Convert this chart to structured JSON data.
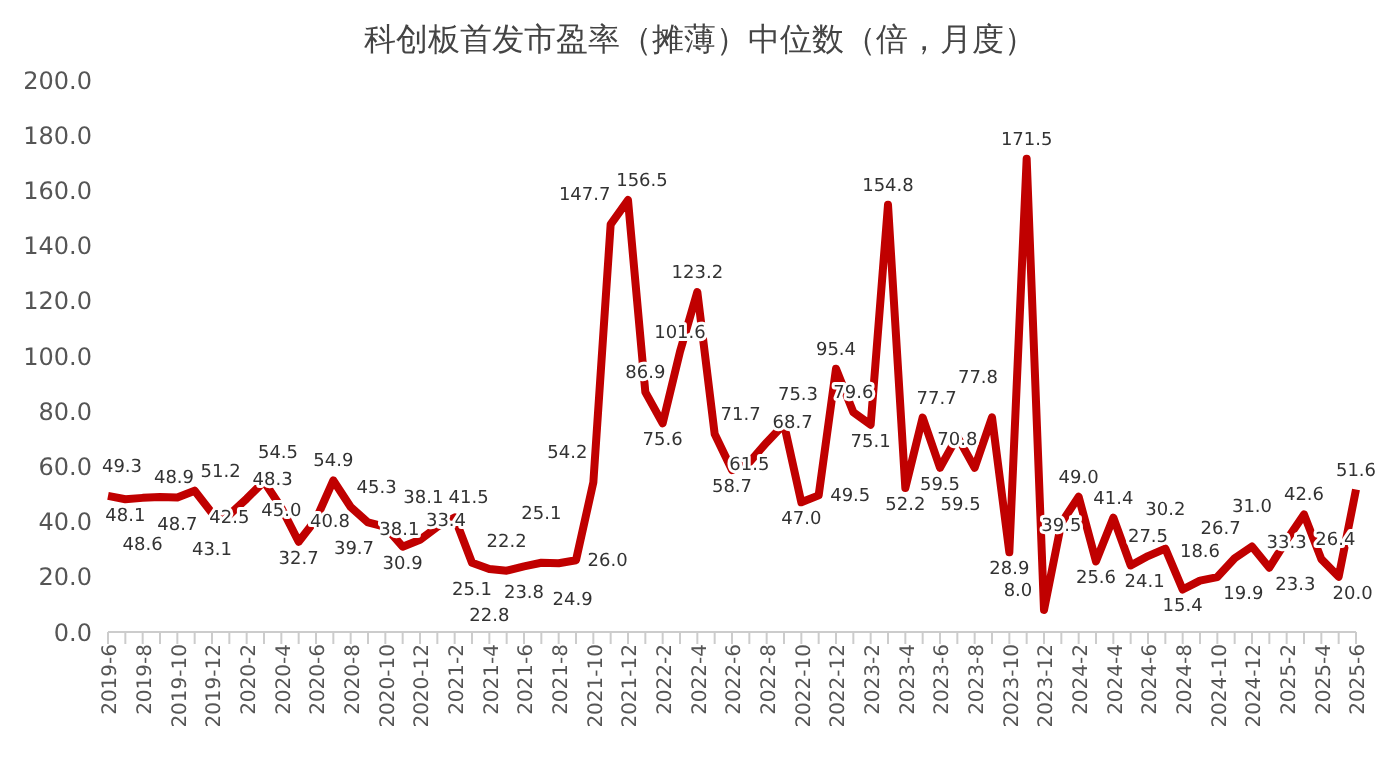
{
  "chart_data": {
    "type": "line",
    "title": "科创板首发市盈率（摊薄）中位数（倍，月度）",
    "categories": [
      "2019-6",
      null,
      "2019-8",
      null,
      "2019-10",
      null,
      "2019-12",
      null,
      "2020-2",
      null,
      "2020-4",
      null,
      "2020-6",
      null,
      "2020-8",
      null,
      "2020-10",
      null,
      "2020-12",
      null,
      "2021-2",
      null,
      "2021-4",
      null,
      "2021-6",
      null,
      "2021-8",
      null,
      "2021-10",
      null,
      "2021-12",
      null,
      "2022-2",
      null,
      "2022-4",
      null,
      "2022-6",
      null,
      "2022-8",
      null,
      "2022-10",
      null,
      "2022-12",
      null,
      "2023-2",
      null,
      "2023-4",
      null,
      "2023-6",
      null,
      "2023-8",
      null,
      "2023-10",
      null,
      "2023-12",
      null,
      "2024-2",
      null,
      "2024-4",
      null,
      "2024-6",
      null,
      "2024-8",
      null,
      "2024-10",
      null,
      "2024-12",
      null,
      "2025-2",
      null,
      "2025-4",
      null,
      "2025-6"
    ],
    "values": [
      49.3,
      48.1,
      48.6,
      48.9,
      48.7,
      51.2,
      43.1,
      42.5,
      48.3,
      54.5,
      45.0,
      32.7,
      40.8,
      54.9,
      45.3,
      39.7,
      38.1,
      30.9,
      33.4,
      38.1,
      41.5,
      25.1,
      22.8,
      22.2,
      23.8,
      25.1,
      24.9,
      26.0,
      54.2,
      147.7,
      156.5,
      86.9,
      75.6,
      101.6,
      123.2,
      71.7,
      58.7,
      61.5,
      68.7,
      75.3,
      47.0,
      49.5,
      95.4,
      79.6,
      75.1,
      154.8,
      52.2,
      77.7,
      59.5,
      70.8,
      59.5,
      77.8,
      28.9,
      171.5,
      8.0,
      39.5,
      49.0,
      25.6,
      41.4,
      24.1,
      27.5,
      30.2,
      15.4,
      18.6,
      19.9,
      26.7,
      31.0,
      23.3,
      33.3,
      42.6,
      26.4,
      20.0,
      51.6
    ],
    "value_labels": [
      "49.3",
      "48.1",
      "48.6",
      "48.9",
      "48.7",
      "51.2",
      "43.1",
      "42.5",
      "48.3",
      "54.5",
      "45.0",
      "32.7",
      "40.8",
      "54.9",
      "45.3",
      "39.7",
      "38.1",
      "30.9",
      "33.4",
      "38.1",
      "41.5",
      "25.1",
      "22.8",
      "22.2",
      "23.8",
      "25.1",
      "24.9",
      "26.0",
      "54.2",
      "147.7",
      "156.5",
      "86.9",
      "75.6",
      "101.6",
      "123.2",
      "71.7",
      "58.7",
      "61.5",
      "68.7",
      "75.3",
      "47.0",
      "49.5",
      "95.4",
      "79.6",
      "75.1",
      "154.8",
      "52.2",
      "77.7",
      "59.5",
      "70.8",
      "59.5",
      "77.8",
      "28.9",
      "171.5",
      "8.0",
      "39.5",
      "49.0",
      "25.6",
      "41.4",
      "24.1",
      "27.5",
      "30.2",
      "15.4",
      "18.6",
      "19.9",
      "26.7",
      "31.0",
      "23.3",
      "33.3",
      "42.6",
      "26.4",
      "20.0",
      "51.6"
    ],
    "color": "#c00000",
    "ylim": [
      0,
      200
    ],
    "yticks": [
      {
        "value": 0,
        "label": "0.0"
      },
      {
        "value": 20,
        "label": "20.0"
      },
      {
        "value": 40,
        "label": "40.0"
      },
      {
        "value": 60,
        "label": "60.0"
      },
      {
        "value": 80,
        "label": "80.0"
      },
      {
        "value": 100,
        "label": "100.0"
      },
      {
        "value": 120,
        "label": "120.0"
      },
      {
        "value": 140,
        "label": "140.0"
      },
      {
        "value": 160,
        "label": "160.0"
      },
      {
        "value": 180,
        "label": "180.0"
      },
      {
        "value": 200,
        "label": "200.0"
      }
    ],
    "grid": false,
    "legend": false,
    "marker": "none",
    "line_style": "solid"
  }
}
